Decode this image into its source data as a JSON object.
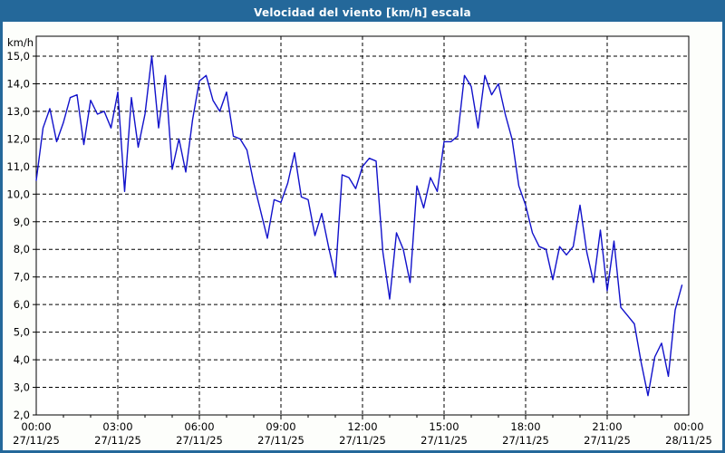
{
  "window": {
    "title": "Velocidad del viento [km/h] escala",
    "title_bar_color": "#24689a",
    "border_color": "#24689a",
    "background_color": "#fdfefb"
  },
  "chart_data": {
    "type": "line",
    "title": "Velocidad del viento [km/h] escala",
    "ylabel": "km/h",
    "xlabel": "",
    "ylim": [
      2,
      15
    ],
    "y_tick_step": 1.0,
    "y_tick_labels": [
      "15,0",
      "14,0",
      "13,0",
      "12,0",
      "11,0",
      "10,0",
      "9,0",
      "8,0",
      "7,0",
      "6,0",
      "5,0",
      "4,0",
      "3,0",
      "2,0"
    ],
    "grid": "dashed-black",
    "legend": "none",
    "line_color": "#1111cb",
    "axis_color": "#000000",
    "x_axis": {
      "range_hours": 24,
      "major_tick_every_hours": 3,
      "minor_tick_every_hours": 1,
      "tick_labels": [
        {
          "time": "00:00",
          "date": "27/11/25"
        },
        {
          "time": "03:00",
          "date": "27/11/25"
        },
        {
          "time": "06:00",
          "date": "27/11/25"
        },
        {
          "time": "09:00",
          "date": "27/11/25"
        },
        {
          "time": "12:00",
          "date": "27/11/25"
        },
        {
          "time": "15:00",
          "date": "27/11/25"
        },
        {
          "time": "18:00",
          "date": "27/11/25"
        },
        {
          "time": "21:00",
          "date": "27/11/25"
        },
        {
          "time": "00:00",
          "date": "28/11/25"
        }
      ]
    },
    "series": [
      {
        "name": "Velocidad del viento",
        "unit": "km/h",
        "sample_interval_minutes": 15,
        "values_are_estimates": true,
        "x": [
          "00:00",
          "00:15",
          "00:30",
          "00:45",
          "01:00",
          "01:15",
          "01:30",
          "01:45",
          "02:00",
          "02:15",
          "02:30",
          "02:45",
          "03:00",
          "03:15",
          "03:30",
          "03:45",
          "04:00",
          "04:15",
          "04:30",
          "04:45",
          "05:00",
          "05:15",
          "05:30",
          "05:45",
          "06:00",
          "06:15",
          "06:30",
          "06:45",
          "07:00",
          "07:15",
          "07:30",
          "07:45",
          "08:00",
          "08:15",
          "08:30",
          "08:45",
          "09:00",
          "09:15",
          "09:30",
          "09:45",
          "10:00",
          "10:15",
          "10:30",
          "10:45",
          "11:00",
          "11:15",
          "11:30",
          "11:45",
          "12:00",
          "12:15",
          "12:30",
          "12:45",
          "13:00",
          "13:15",
          "13:30",
          "13:45",
          "14:00",
          "14:15",
          "14:30",
          "14:45",
          "15:00",
          "15:15",
          "15:30",
          "15:45",
          "16:00",
          "16:15",
          "16:30",
          "16:45",
          "17:00",
          "17:15",
          "17:30",
          "17:45",
          "18:00",
          "18:15",
          "18:30",
          "18:45",
          "19:00",
          "19:15",
          "19:30",
          "19:45",
          "20:00",
          "20:15",
          "20:30",
          "20:45",
          "21:00",
          "21:15",
          "21:30",
          "21:45",
          "22:00",
          "22:15",
          "22:30",
          "22:45",
          "23:00",
          "23:15",
          "23:30",
          "23:45"
        ],
        "values": [
          10.5,
          12.4,
          13.1,
          11.9,
          12.6,
          13.5,
          13.6,
          11.8,
          13.4,
          12.9,
          13.0,
          12.4,
          13.7,
          10.1,
          13.5,
          11.7,
          12.9,
          15.0,
          12.4,
          14.3,
          10.9,
          12.0,
          10.8,
          12.7,
          14.1,
          14.3,
          13.4,
          13.0,
          13.7,
          12.1,
          12.0,
          11.6,
          10.4,
          9.4,
          8.4,
          9.8,
          9.7,
          10.4,
          11.5,
          9.9,
          9.8,
          8.5,
          9.3,
          8.1,
          7.0,
          10.7,
          10.6,
          10.2,
          11.0,
          11.3,
          11.2,
          7.9,
          6.2,
          8.6,
          8.0,
          6.8,
          10.3,
          9.5,
          10.6,
          10.1,
          11.9,
          11.9,
          12.1,
          14.3,
          13.9,
          12.4,
          14.3,
          13.6,
          14.0,
          12.9,
          12.0,
          10.3,
          9.6,
          8.6,
          8.1,
          8.0,
          6.9,
          8.1,
          7.8,
          8.1,
          9.6,
          7.9,
          6.8,
          8.7,
          6.5,
          8.3,
          5.9,
          5.6,
          5.3,
          3.9,
          2.7,
          4.1,
          4.6,
          3.4,
          5.8,
          6.7
        ]
      }
    ]
  }
}
